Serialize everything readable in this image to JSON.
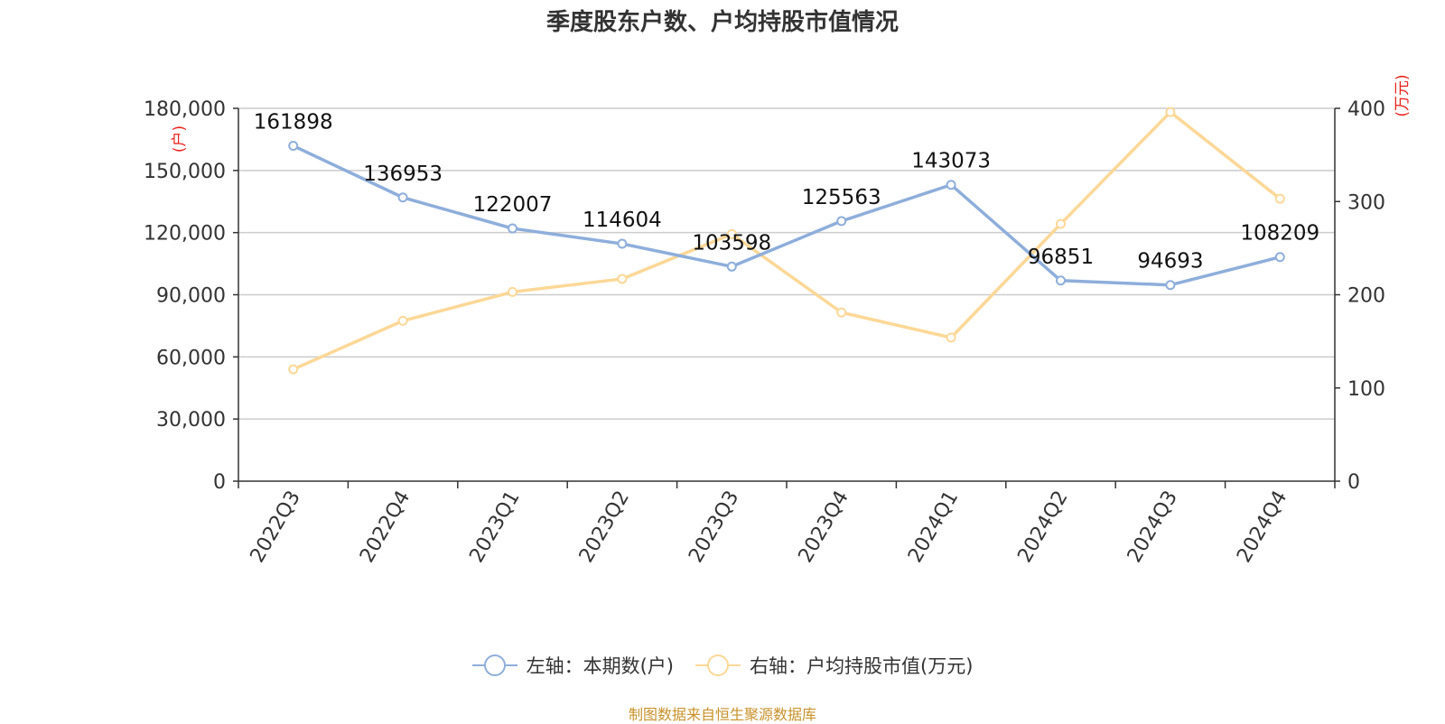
{
  "chart_data": {
    "type": "line",
    "title": "季度股东户数、户均持股市值情况",
    "categories": [
      "2022Q3",
      "2022Q4",
      "2023Q1",
      "2023Q2",
      "2023Q3",
      "2023Q4",
      "2024Q1",
      "2024Q2",
      "2024Q3",
      "2024Q4"
    ],
    "left_axis": {
      "unit_label": "(户)",
      "ylim": [
        0,
        180000
      ],
      "ticks": [
        "0",
        "30,000",
        "60,000",
        "90,000",
        "120,000",
        "150,000",
        "180,000"
      ]
    },
    "right_axis": {
      "unit_label": "(万元)",
      "ylim": [
        0,
        400
      ],
      "ticks": [
        "0",
        "100",
        "200",
        "300",
        "400"
      ]
    },
    "series": [
      {
        "name": "左轴：本期数(户)",
        "axis": "left",
        "color": "#8eaedb",
        "values": [
          161898,
          136953,
          122007,
          114604,
          103598,
          125563,
          143073,
          96851,
          94693,
          108209
        ],
        "data_labels": [
          "161898",
          "136953",
          "122007",
          "114604",
          "103598",
          "125563",
          "143073",
          "96851",
          "94693",
          "108209"
        ]
      },
      {
        "name": "右轴：户均持股市值(万元)",
        "axis": "right",
        "color": "#fcd897",
        "values": [
          120,
          172,
          203,
          217,
          265,
          181,
          154,
          276,
          396,
          303
        ]
      }
    ],
    "grid": true,
    "legend_position": "bottom-center"
  },
  "source_note": "制图数据来自恒生聚源数据库"
}
